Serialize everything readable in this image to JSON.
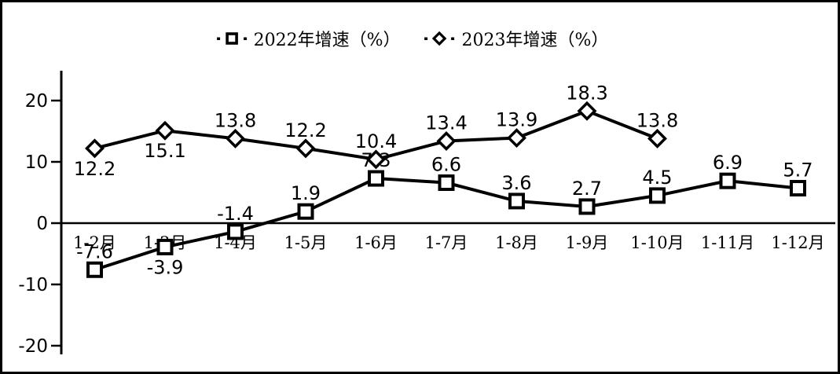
{
  "figure": {
    "background": "#ffffff",
    "border_color": "#000000",
    "line_color": "#000000",
    "text_color": "#000000"
  },
  "legend": {
    "items": [
      {
        "label": "2022年增速（%）",
        "marker": "square"
      },
      {
        "label": "2023年增速（%）",
        "marker": "diamond"
      }
    ]
  },
  "chart_data": {
    "type": "line",
    "title": "",
    "xlabel": "",
    "ylabel": "",
    "categories": [
      "1-2月",
      "1-3月",
      "1-4月",
      "1-5月",
      "1-6月",
      "1-7月",
      "1-8月",
      "1-9月",
      "1-10月",
      "1-11月",
      "1-12月"
    ],
    "series": [
      {
        "name": "2022年增速（%）",
        "marker": "square",
        "color": "#000000",
        "values": [
          -7.6,
          -3.9,
          -1.4,
          1.9,
          7.3,
          6.6,
          3.6,
          2.7,
          4.5,
          6.9,
          5.7
        ],
        "label_positions": [
          "above",
          "below",
          "above",
          "above",
          "above",
          "above",
          "above",
          "above",
          "above",
          "above",
          "above"
        ]
      },
      {
        "name": "2023年增速（%）",
        "marker": "diamond",
        "color": "#000000",
        "values": [
          12.2,
          15.1,
          13.8,
          12.2,
          10.4,
          13.4,
          13.9,
          18.3,
          13.8
        ],
        "label_positions": [
          "below",
          "below",
          "above",
          "above",
          "above",
          "above",
          "above",
          "above",
          "above"
        ]
      }
    ],
    "yticks": [
      20,
      10,
      0,
      -10,
      -20
    ],
    "ylim": [
      -22,
      24
    ],
    "grid": false,
    "zero_baseline": true,
    "legend_position": "top-center"
  }
}
